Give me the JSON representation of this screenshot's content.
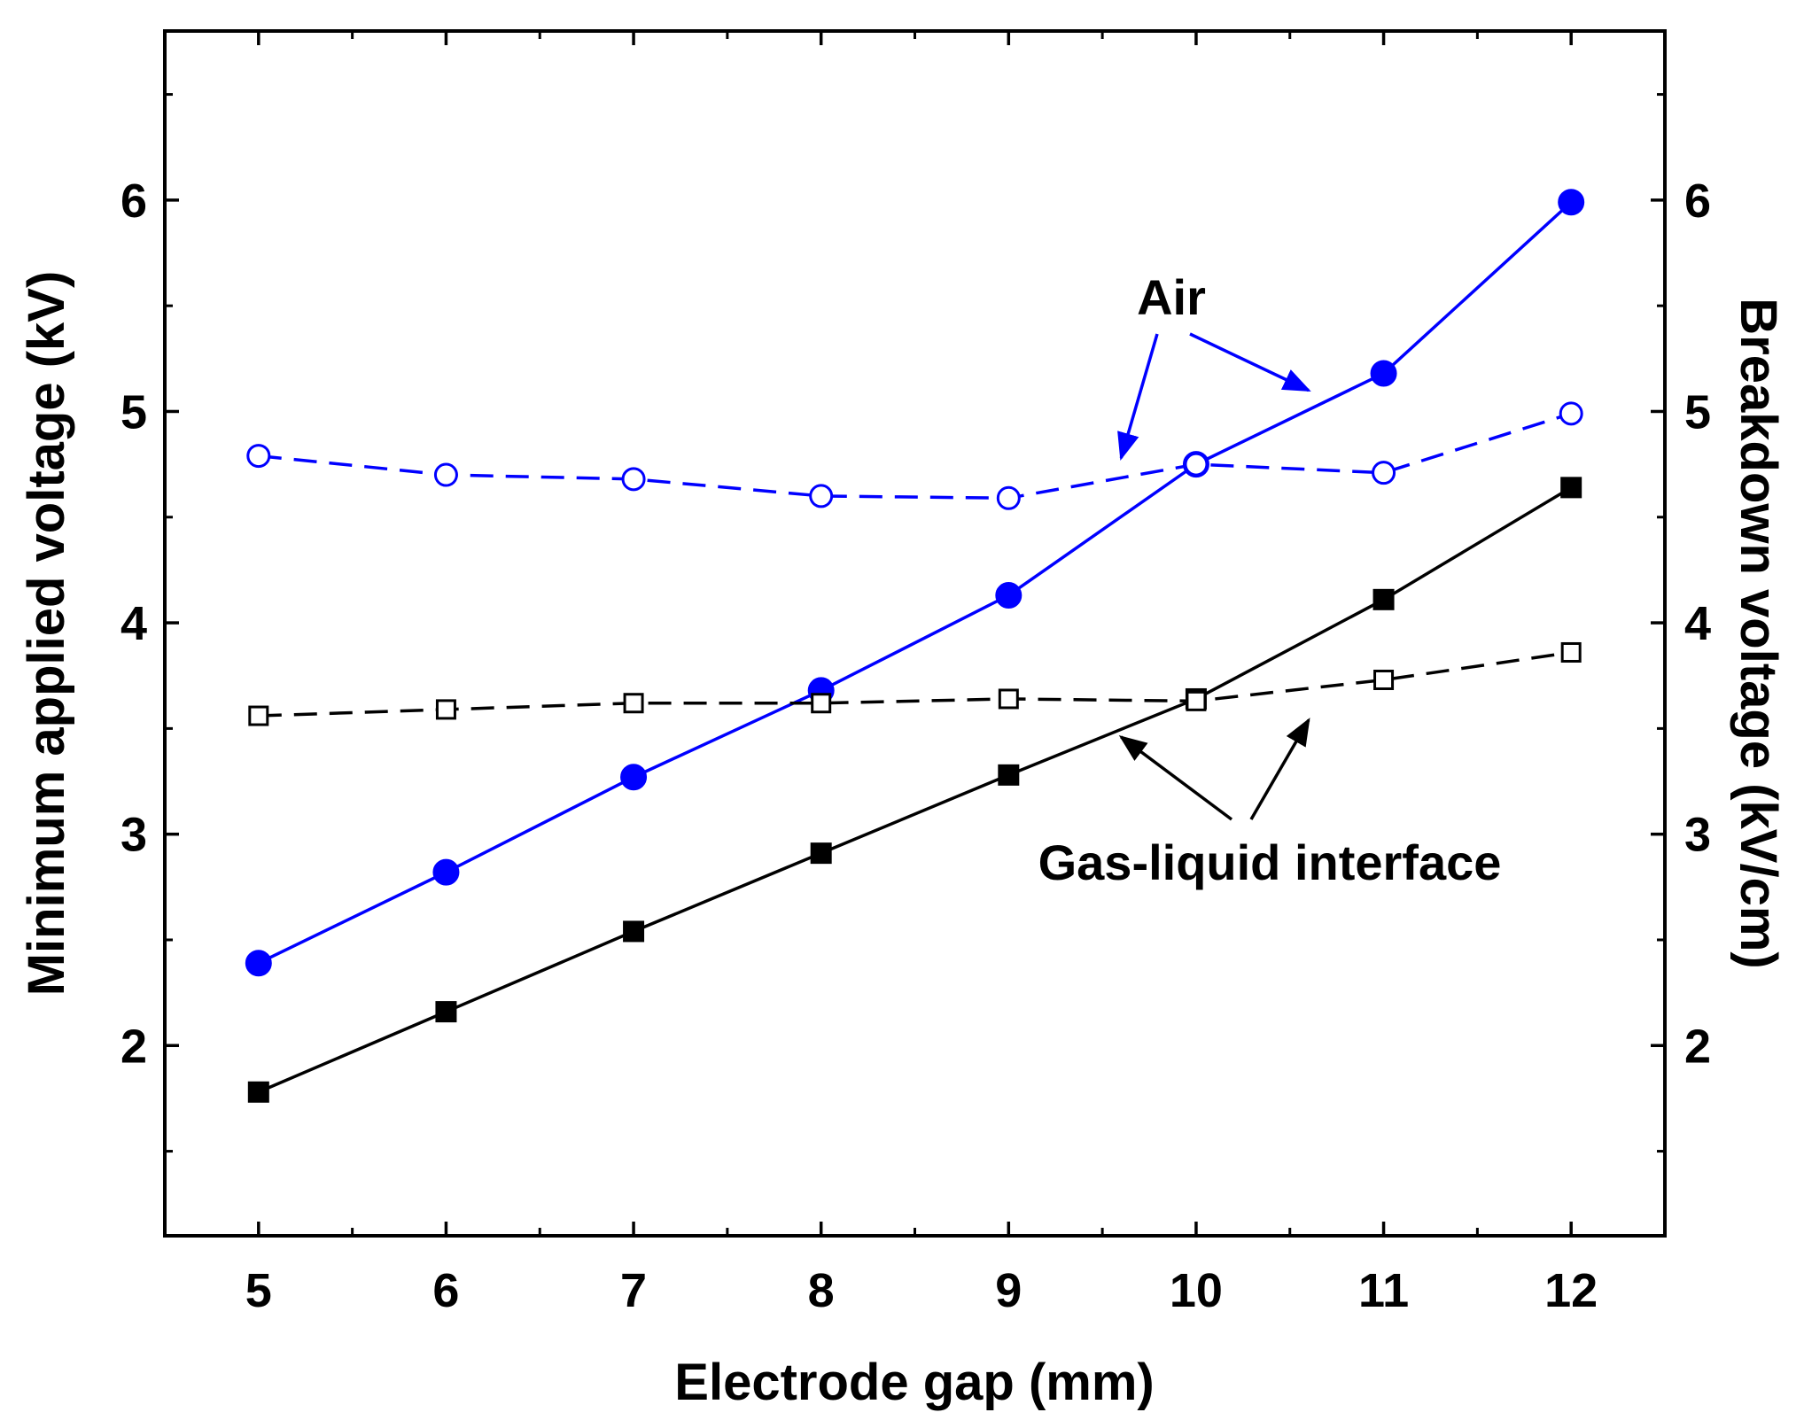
{
  "chart_data": {
    "type": "line",
    "xlabel": "Electrode gap (mm)",
    "ylabel_left": "Minimum applied voltage (kV)",
    "ylabel_right": "Breakdown voltage (kV/cm)",
    "xlim": [
      4.5,
      12.5
    ],
    "ylim_left": [
      1.1,
      6.8
    ],
    "ylim_right": [
      1.1,
      6.8
    ],
    "xticks": [
      "5",
      "6",
      "7",
      "8",
      "9",
      "10",
      "11",
      "12"
    ],
    "yticks_left": [
      "2",
      "3",
      "4",
      "5",
      "6"
    ],
    "yticks_right": [
      "2",
      "3",
      "4",
      "5",
      "6"
    ],
    "x": [
      5,
      6,
      7,
      8,
      9,
      10,
      11,
      12
    ],
    "series": [
      {
        "axis": "left",
        "group": "Air",
        "marker": "filled-circle",
        "line": "solid",
        "color": "#0000ff",
        "values": [
          2.39,
          2.82,
          3.27,
          3.68,
          4.13,
          4.75,
          5.18,
          5.99
        ]
      },
      {
        "axis": "right",
        "group": "Air",
        "marker": "open-circle",
        "line": "dashed",
        "color": "#0000ff",
        "values": [
          4.79,
          4.7,
          4.68,
          4.6,
          4.59,
          4.75,
          4.71,
          4.99
        ]
      },
      {
        "axis": "left",
        "group": "Gas-liquid interface",
        "marker": "filled-square",
        "line": "solid",
        "color": "#000000",
        "values": [
          1.78,
          2.16,
          2.54,
          2.91,
          3.28,
          3.64,
          4.11,
          4.64
        ]
      },
      {
        "axis": "right",
        "group": "Gas-liquid interface",
        "marker": "open-square",
        "line": "dashed",
        "color": "#000000",
        "values": [
          3.56,
          3.59,
          3.62,
          3.62,
          3.64,
          3.63,
          3.73,
          3.86
        ]
      }
    ],
    "annotations": [
      {
        "text": "Air",
        "color": "#0000ff",
        "arrow_targets": [
          [
            9.6,
            4.78
          ],
          [
            10.6,
            5.1
          ]
        ]
      },
      {
        "text": "Gas-liquid interface",
        "color": "#000000",
        "arrow_targets": [
          [
            9.6,
            3.46
          ],
          [
            10.6,
            3.54
          ]
        ]
      }
    ],
    "grid": false,
    "legend": "none"
  }
}
